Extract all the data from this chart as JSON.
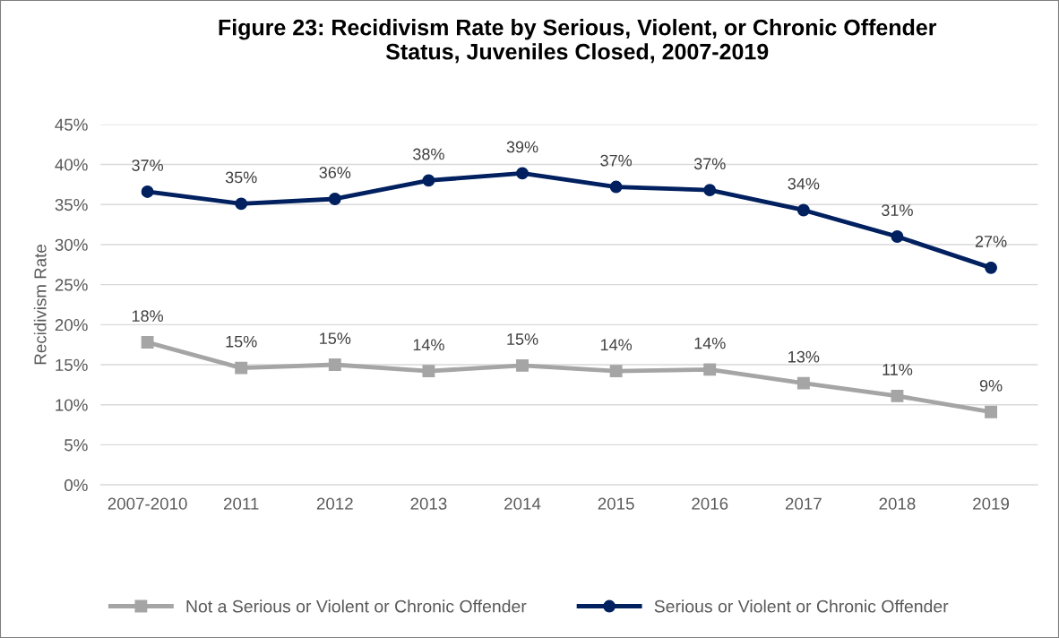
{
  "chart_data": {
    "type": "line",
    "title": "Figure 23: Recidivism Rate by Serious, Violent, or Chronic Offender Status, Juveniles Closed, 2007-2019",
    "ylabel": "Recidivism Rate",
    "categories": [
      "2007-2010",
      "2011",
      "2012",
      "2013",
      "2014",
      "2015",
      "2016",
      "2017",
      "2018",
      "2019"
    ],
    "series": [
      {
        "name": "Not a Serious or Violent or Chronic Offender",
        "color": "#a5a5a5",
        "marker": "square",
        "values": [
          17.8,
          14.6,
          15.0,
          14.2,
          14.9,
          14.2,
          14.4,
          12.7,
          11.1,
          9.1
        ],
        "value_labels": [
          "18%",
          "15%",
          "15%",
          "14%",
          "15%",
          "14%",
          "14%",
          "13%",
          "11%",
          "9%"
        ]
      },
      {
        "name": "Serious or Violent or Chronic Offender",
        "color": "#002060",
        "marker": "circle",
        "values": [
          36.6,
          35.1,
          35.7,
          38.0,
          38.9,
          37.2,
          36.8,
          34.3,
          31.0,
          27.1
        ],
        "value_labels": [
          "37%",
          "35%",
          "36%",
          "38%",
          "39%",
          "37%",
          "37%",
          "34%",
          "31%",
          "27%"
        ]
      }
    ],
    "ylim": [
      0,
      45
    ],
    "yticks": [
      {
        "value": 0,
        "label": "0%"
      },
      {
        "value": 5,
        "label": "5%"
      },
      {
        "value": 10,
        "label": "10%"
      },
      {
        "value": 15,
        "label": "15%"
      },
      {
        "value": 20,
        "label": "20%"
      },
      {
        "value": 25,
        "label": "25%"
      },
      {
        "value": 30,
        "label": "30%"
      },
      {
        "value": 35,
        "label": "35%"
      },
      {
        "value": 40,
        "label": "40%"
      },
      {
        "value": 45,
        "label": "45%"
      }
    ],
    "grid": "y",
    "legend": "bottom",
    "line_style": "solid"
  }
}
